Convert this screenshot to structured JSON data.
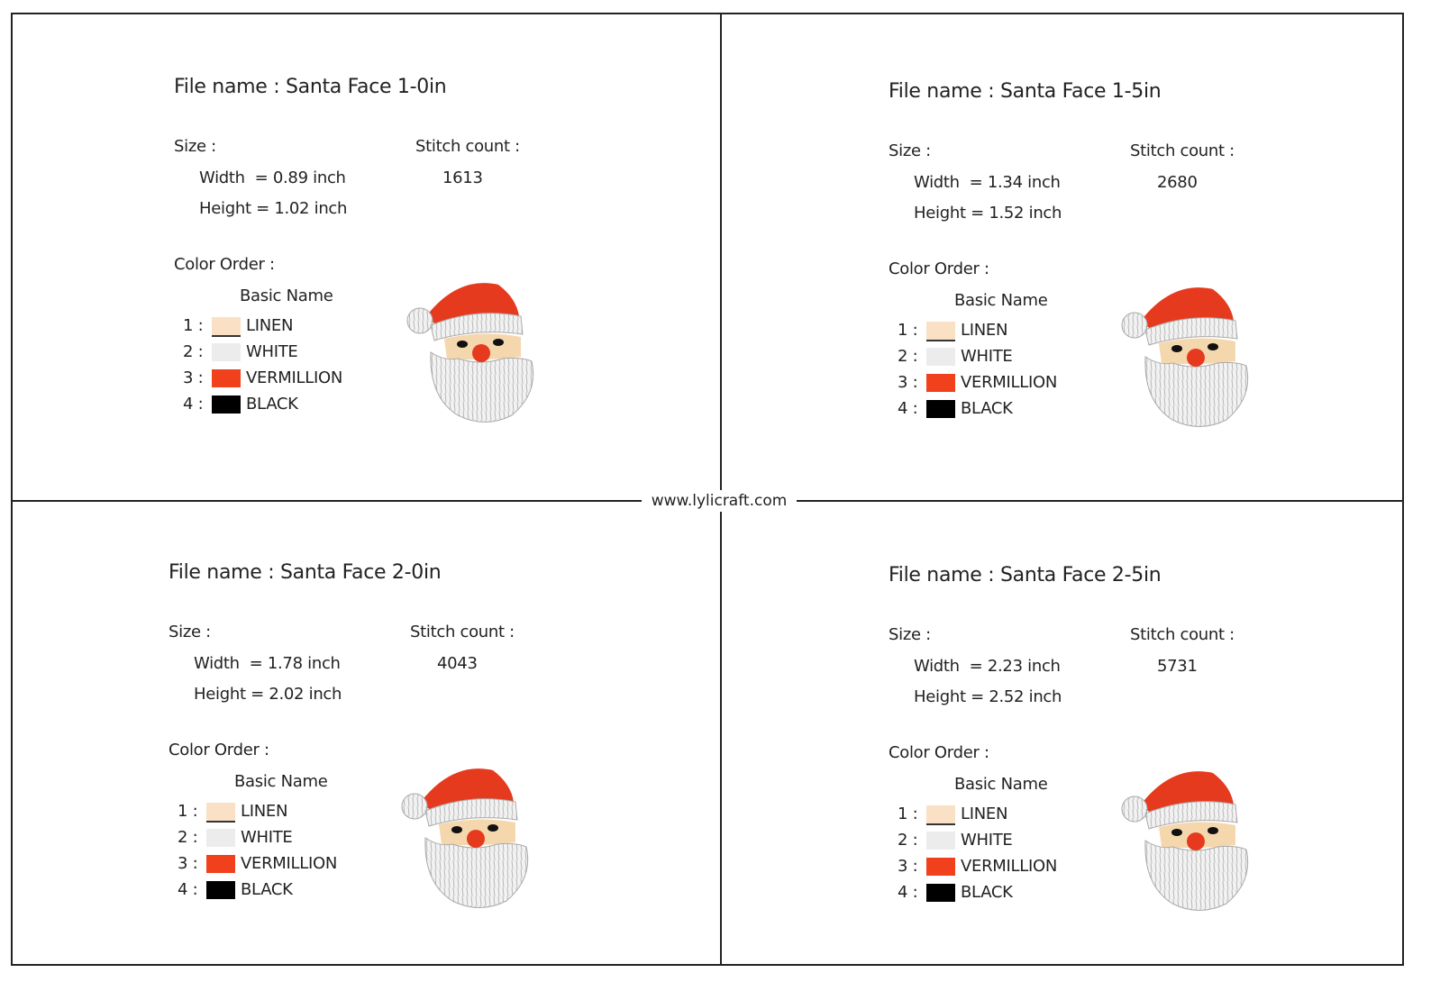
{
  "watermark": "www.lylicraft.com",
  "panels": [
    {
      "file_name": "File name : Santa Face 1-0in",
      "size_label": "Size :",
      "width": "Width  = 0.89 inch",
      "height": "Height = 1.02 inch",
      "stitch_count_label": "Stitch count :",
      "stitch_count": 1613,
      "color_order_label": "Color Order :",
      "column_header": "Basic Name",
      "colors": [
        {
          "index": "1 :",
          "name": "LINEN",
          "swatch": "#fae1c6"
        },
        {
          "index": "2 :",
          "name": "WHITE",
          "swatch": "#ececec"
        },
        {
          "index": "3 :",
          "name": "VERMILLION",
          "swatch": "#f0401c"
        },
        {
          "index": "4 :",
          "name": "BLACK",
          "swatch": "#000000"
        }
      ]
    },
    {
      "file_name": "File name : Santa Face 1-5in",
      "size_label": "Size :",
      "width": "Width  = 1.34 inch",
      "height": "Height = 1.52 inch",
      "stitch_count_label": "Stitch count :",
      "stitch_count": 2680,
      "color_order_label": "Color Order :",
      "column_header": "Basic Name",
      "colors": [
        {
          "index": "1 :",
          "name": "LINEN",
          "swatch": "#fae1c6"
        },
        {
          "index": "2 :",
          "name": "WHITE",
          "swatch": "#ececec"
        },
        {
          "index": "3 :",
          "name": "VERMILLION",
          "swatch": "#f0401c"
        },
        {
          "index": "4 :",
          "name": "BLACK",
          "swatch": "#000000"
        }
      ]
    },
    {
      "file_name": "File name : Santa Face 2-0in",
      "size_label": "Size :",
      "width": "Width  = 1.78 inch",
      "height": "Height = 2.02 inch",
      "stitch_count_label": "Stitch count :",
      "stitch_count": 4043,
      "color_order_label": "Color Order :",
      "column_header": "Basic Name",
      "colors": [
        {
          "index": "1 :",
          "name": "LINEN",
          "swatch": "#fae1c6"
        },
        {
          "index": "2 :",
          "name": "WHITE",
          "swatch": "#ececec"
        },
        {
          "index": "3 :",
          "name": "VERMILLION",
          "swatch": "#f0401c"
        },
        {
          "index": "4 :",
          "name": "BLACK",
          "swatch": "#000000"
        }
      ]
    },
    {
      "file_name": "File name : Santa Face 2-5in",
      "size_label": "Size :",
      "width": "Width  = 2.23 inch",
      "height": "Height = 2.52 inch",
      "stitch_count_label": "Stitch count :",
      "stitch_count": 5731,
      "color_order_label": "Color Order :",
      "column_header": "Basic Name",
      "colors": [
        {
          "index": "1 :",
          "name": "LINEN",
          "swatch": "#fae1c6"
        },
        {
          "index": "2 :",
          "name": "WHITE",
          "swatch": "#ececec"
        },
        {
          "index": "3 :",
          "name": "VERMILLION",
          "swatch": "#f0401c"
        },
        {
          "index": "4 :",
          "name": "BLACK",
          "swatch": "#000000"
        }
      ]
    }
  ]
}
